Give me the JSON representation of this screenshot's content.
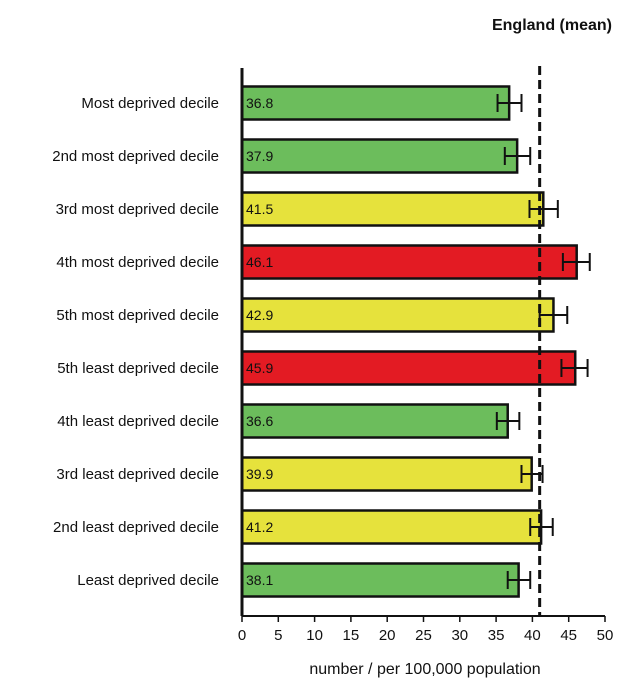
{
  "chart_data": {
    "type": "bar",
    "orientation": "horizontal",
    "categories": [
      "Most deprived decile",
      "2nd most deprived decile",
      "3rd most deprived decile",
      "4th most deprived decile",
      "5th most deprived decile",
      "5th least deprived decile",
      "4th least deprived decile",
      "3rd least deprived decile",
      "2nd least deprived decile",
      "Least deprived decile"
    ],
    "values": [
      36.8,
      37.9,
      41.5,
      46.1,
      42.9,
      45.9,
      36.6,
      39.9,
      41.2,
      38.1
    ],
    "value_labels": [
      "36.8",
      "37.9",
      "41.5",
      "46.1",
      "42.9",
      "45.9",
      "36.6",
      "39.9",
      "41.2",
      "38.1"
    ],
    "ci_lower": [
      35.2,
      36.2,
      39.6,
      44.2,
      41.0,
      44.0,
      35.1,
      38.5,
      39.7,
      36.6
    ],
    "ci_upper": [
      38.5,
      39.7,
      43.5,
      47.9,
      44.8,
      47.6,
      38.2,
      41.4,
      42.8,
      39.7
    ],
    "bar_colors": [
      "#6cbd5c",
      "#6cbd5c",
      "#e6e23c",
      "#e31b23",
      "#e6e23c",
      "#e31b23",
      "#6cbd5c",
      "#e6e23c",
      "#e6e23c",
      "#6cbd5c"
    ],
    "reference_line": {
      "label": "England (mean)",
      "value": 41.0,
      "style": "dashed"
    },
    "xlabel": "number / per 100,000 population",
    "xlim": [
      0,
      50
    ],
    "xticks": [
      0,
      5,
      10,
      15,
      20,
      25,
      30,
      35,
      40,
      45,
      50
    ],
    "grid": false,
    "legend": "none"
  }
}
